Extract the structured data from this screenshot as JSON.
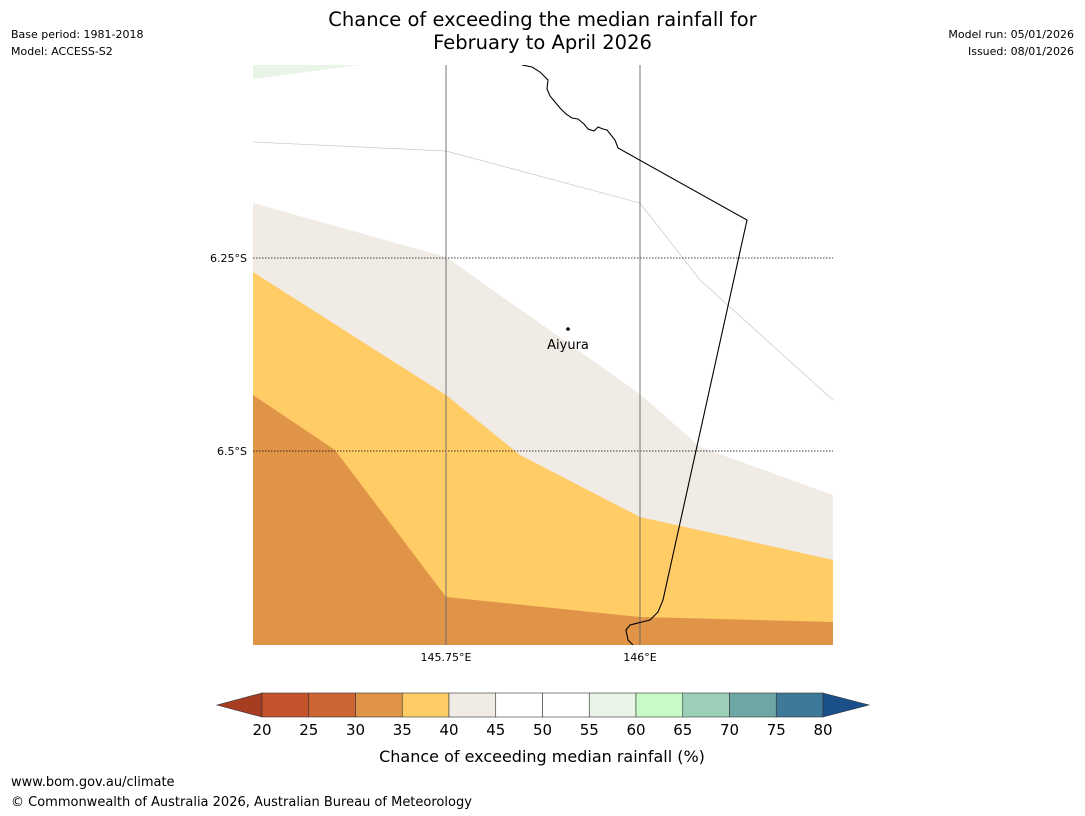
{
  "header": {
    "title_line1": "Chance of exceeding the median rainfall for",
    "title_line2": "February to April 2026",
    "base_period": "Base period: 1981-2018",
    "model": "Model: ACCESS-S2",
    "model_run": "Model run: 05/01/2026",
    "issued": "Issued: 08/01/2026"
  },
  "map": {
    "place_label": "Aiyura",
    "lat_labels": [
      "6.25°S",
      "6.5°S"
    ],
    "lon_labels": [
      "145.75°E",
      "146°E"
    ]
  },
  "colorbar": {
    "ticks": [
      "20",
      "25",
      "30",
      "35",
      "40",
      "45",
      "50",
      "55",
      "60",
      "65",
      "70",
      "75",
      "80"
    ],
    "colors": [
      "#a63c20",
      "#c4532c",
      "#cc6532",
      "#e09448",
      "#ffcc66",
      "#f0ebe5",
      "#ffffff",
      "#ffffff",
      "#e8f4e6",
      "#c8fac8",
      "#9ccfb8",
      "#6ea5a5",
      "#3e799a",
      "#1a4f8a"
    ],
    "label": "Chance of exceeding median rainfall (%)"
  },
  "footer": {
    "url": "www.bom.gov.au/climate",
    "copyright": "© Commonwealth of Australia 2026, Australian Bureau of Meteorology"
  }
}
